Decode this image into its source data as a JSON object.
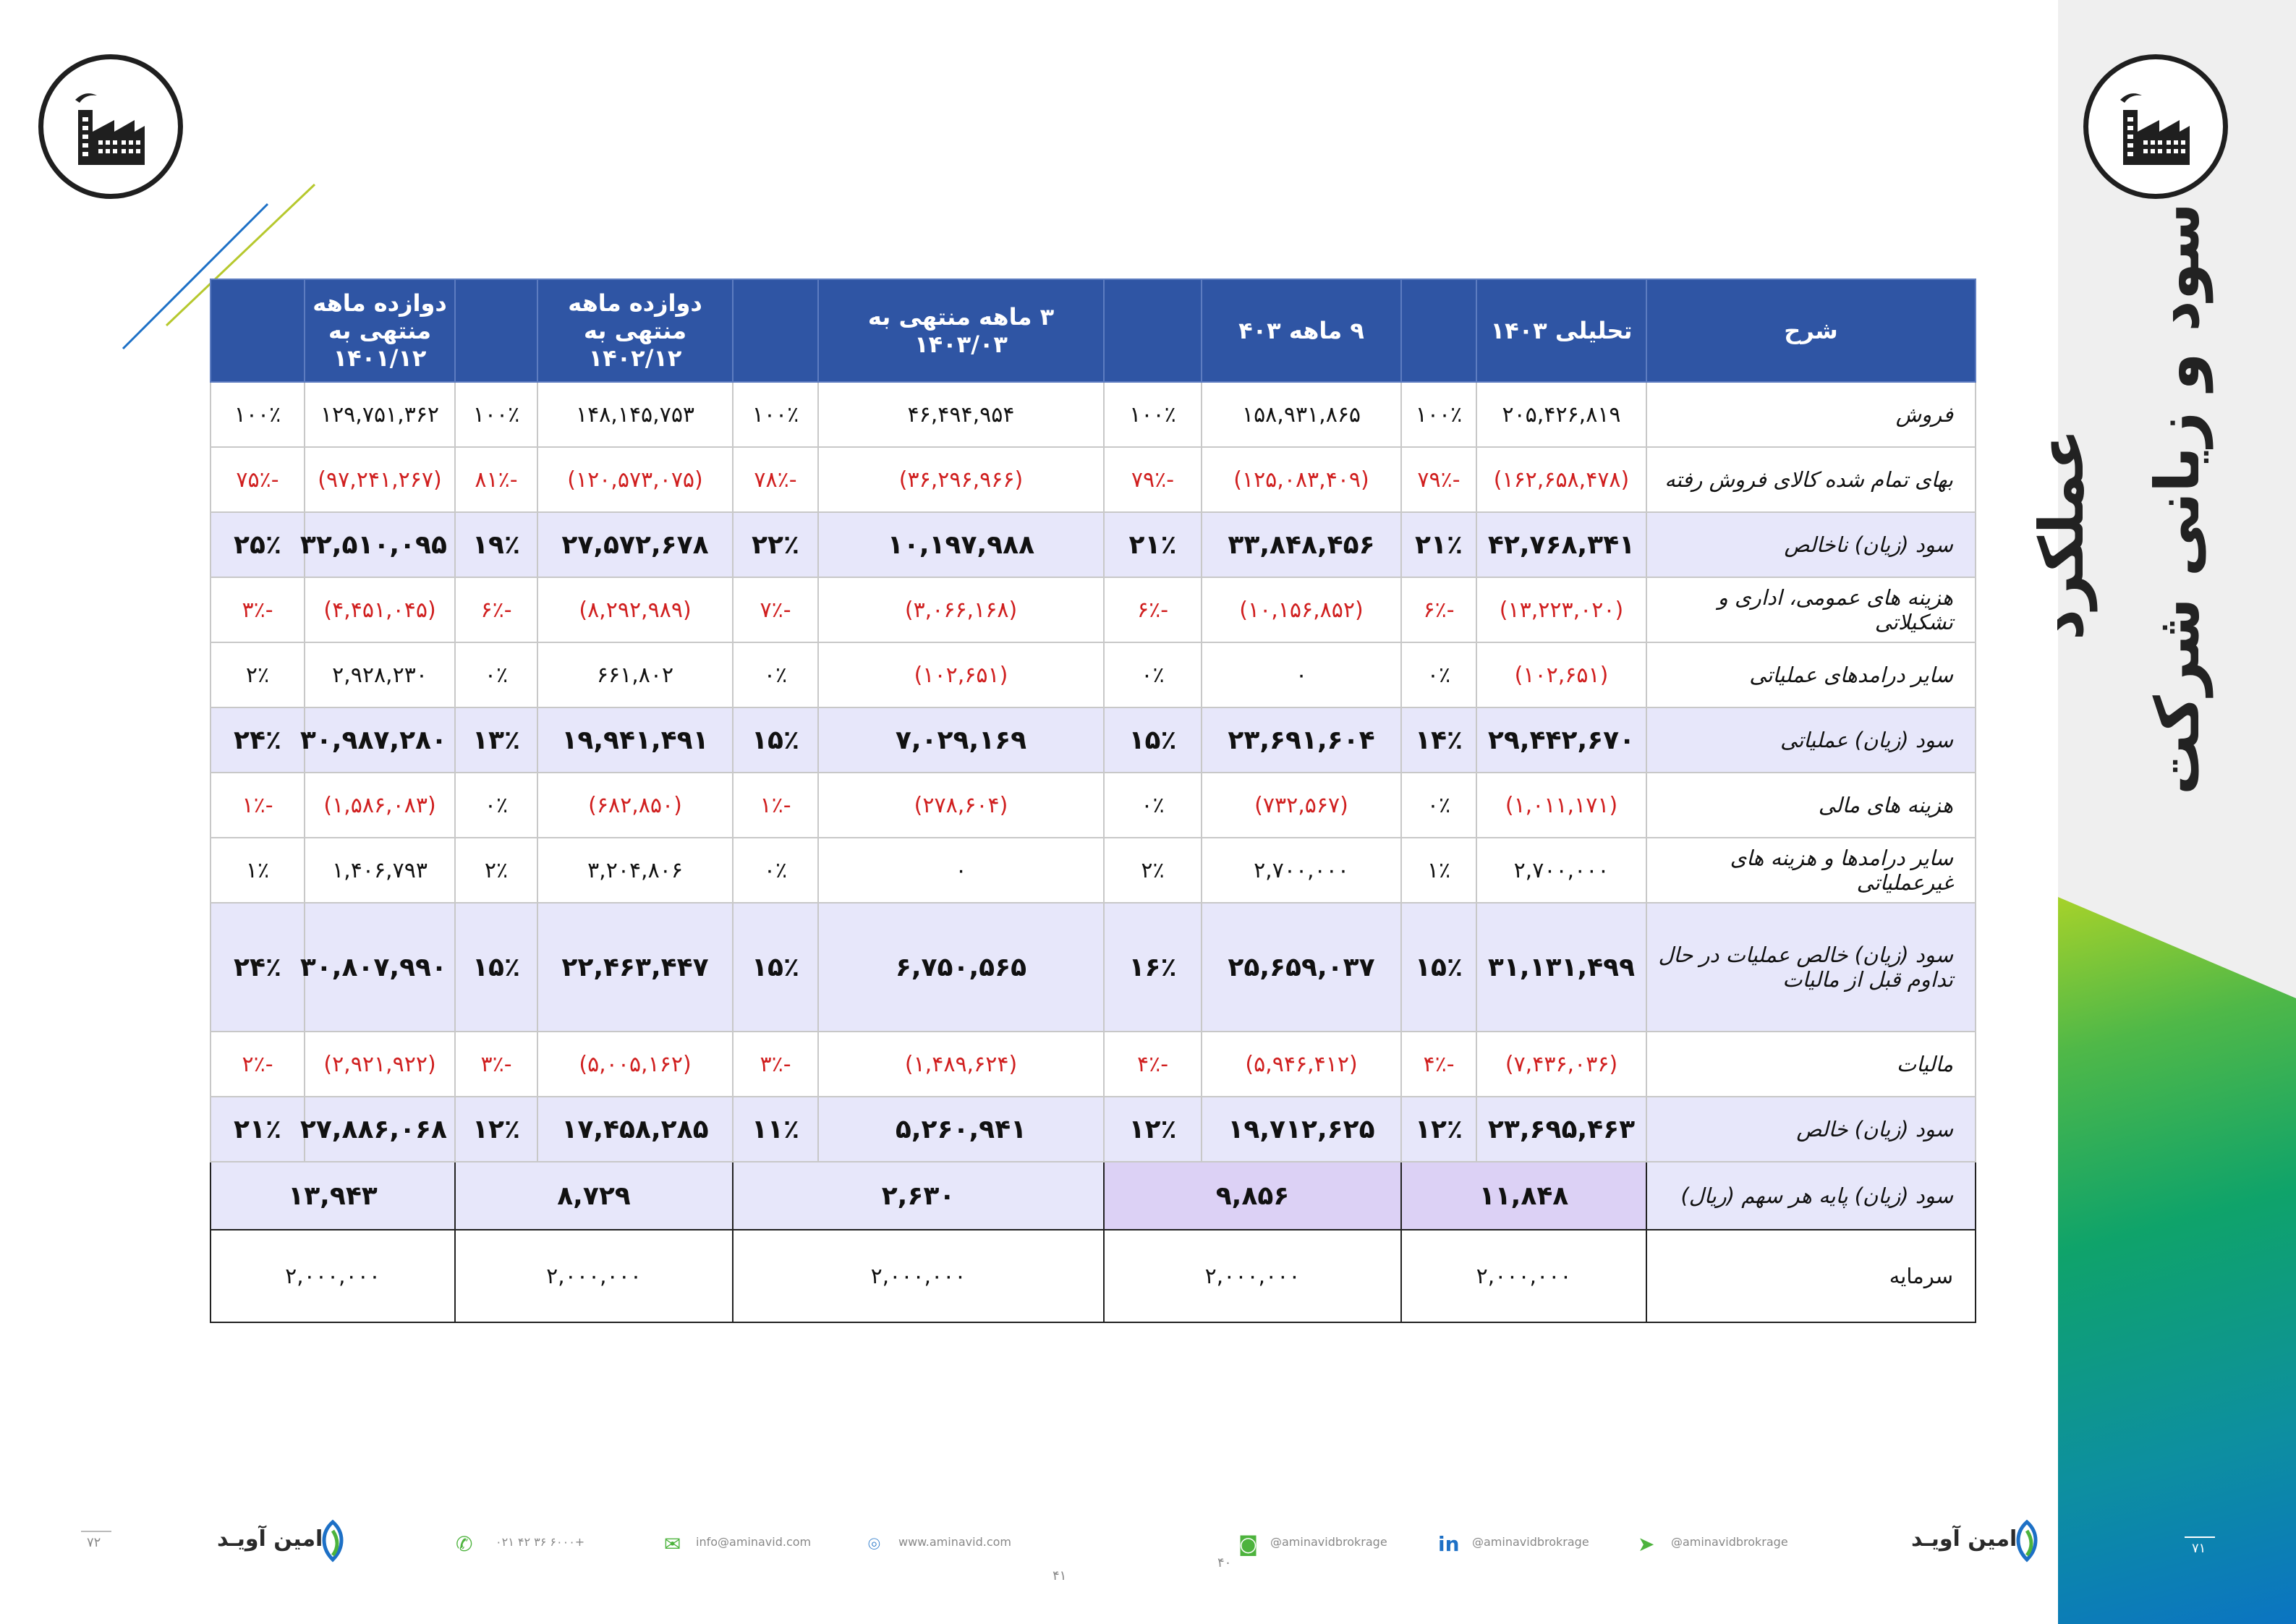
{
  "sidebar": {
    "title_line1": "سود و زیانی شرکت",
    "title_line2": "عملکرد"
  },
  "table": {
    "headers": {
      "desc": "شرح",
      "c1": "تحلیلی ۱۴۰۳",
      "c2": "۹ ماهه ۴۰۳",
      "c3": "۳ ماهه منتهی به ۱۴۰۳/۰۳",
      "c4_line1": "دوازده ماهه منتهی به",
      "c4_line2": "۱۴۰۲/۱۲",
      "c5_line1": "دوازده ماهه",
      "c5_line2": "منتهی به",
      "c5_line3": "۱۴۰۱/۱۲"
    },
    "rows": [
      {
        "desc": "فروش",
        "v1": "۲۰۵,۴۲۶,۸۱۹",
        "p1": "۱۰۰٪",
        "v2": "۱۵۸,۹۳۱,۸۶۵",
        "p2": "۱۰۰٪",
        "v3": "۴۶,۴۹۴,۹۵۴",
        "p3": "۱۰۰٪",
        "v4": "۱۴۸,۱۴۵,۷۵۳",
        "p4": "۱۰۰٪",
        "v5": "۱۲۹,۷۵۱,۳۶۲",
        "p5": "۱۰۰٪"
      },
      {
        "desc": "بهای تمام شده کالای فروش رفته",
        "v1": "(۱۶۲,۶۵۸,۴۷۸)",
        "p1": "-۷۹٪",
        "v2": "(۱۲۵,۰۸۳,۴۰۹)",
        "p2": "-۷۹٪",
        "v3": "(۳۶,۲۹۶,۹۶۶)",
        "p3": "-۷۸٪",
        "v4": "(۱۲۰,۵۷۳,۰۷۵)",
        "p4": "-۸۱٪",
        "v5": "(۹۷,۲۴۱,۲۶۷)",
        "p5": "-۷۵٪"
      },
      {
        "desc": "سود (زیان) ناخالص",
        "v1": "۴۲,۷۶۸,۳۴۱",
        "p1": "۲۱٪",
        "v2": "۳۳,۸۴۸,۴۵۶",
        "p2": "۲۱٪",
        "v3": "۱۰,۱۹۷,۹۸۸",
        "p3": "۲۲٪",
        "v4": "۲۷,۵۷۲,۶۷۸",
        "p4": "۱۹٪",
        "v5": "۳۲,۵۱۰,۰۹۵",
        "p5": "۲۵٪"
      },
      {
        "desc": "هزینه های عمومی، اداری و تشکیلاتی",
        "v1": "(۱۳,۲۲۳,۰۲۰)",
        "p1": "-۶٪",
        "v2": "(۱۰,۱۵۶,۸۵۲)",
        "p2": "-۶٪",
        "v3": "(۳,۰۶۶,۱۶۸)",
        "p3": "-۷٪",
        "v4": "(۸,۲۹۲,۹۸۹)",
        "p4": "-۶٪",
        "v5": "(۴,۴۵۱,۰۴۵)",
        "p5": "-۳٪"
      },
      {
        "desc": "سایر درامدهای عملیاتی",
        "v1": "(۱۰۲,۶۵۱)",
        "p1": "۰٪",
        "v2": "۰",
        "p2": "۰٪",
        "v3": "(۱۰۲,۶۵۱)",
        "p3": "۰٪",
        "v4": "۶۶۱,۸۰۲",
        "p4": "۰٪",
        "v5": "۲,۹۲۸,۲۳۰",
        "p5": "۲٪"
      },
      {
        "desc": "سود (زیان) عملیاتی",
        "v1": "۲۹,۴۴۲,۶۷۰",
        "p1": "۱۴٪",
        "v2": "۲۳,۶۹۱,۶۰۴",
        "p2": "۱۵٪",
        "v3": "۷,۰۲۹,۱۶۹",
        "p3": "۱۵٪",
        "v4": "۱۹,۹۴۱,۴۹۱",
        "p4": "۱۳٪",
        "v5": "۳۰,۹۸۷,۲۸۰",
        "p5": "۲۴٪"
      },
      {
        "desc": "هزینه های مالی",
        "v1": "(۱,۰۱۱,۱۷۱)",
        "p1": "۰٪",
        "v2": "(۷۳۲,۵۶۷)",
        "p2": "۰٪",
        "v3": "(۲۷۸,۶۰۴)",
        "p3": "-۱٪",
        "v4": "(۶۸۲,۸۵۰)",
        "p4": "۰٪",
        "v5": "(۱,۵۸۶,۰۸۳)",
        "p5": "-۱٪"
      },
      {
        "desc": "سایر درامدها و هزینه های غیرعملیاتی",
        "v1": "۲,۷۰۰,۰۰۰",
        "p1": "۱٪",
        "v2": "۲,۷۰۰,۰۰۰",
        "p2": "۲٪",
        "v3": "۰",
        "p3": "۰٪",
        "v4": "۳,۲۰۴,۸۰۶",
        "p4": "۲٪",
        "v5": "۱,۴۰۶,۷۹۳",
        "p5": "۱٪"
      },
      {
        "desc": "سود (زیان) خالص عملیات در حال تداوم قبل از مالیات",
        "v1": "۳۱,۱۳۱,۴۹۹",
        "p1": "۱۵٪",
        "v2": "۲۵,۶۵۹,۰۳۷",
        "p2": "۱۶٪",
        "v3": "۶,۷۵۰,۵۶۵",
        "p3": "۱۵٪",
        "v4": "۲۲,۴۶۳,۴۴۷",
        "p4": "۱۵٪",
        "v5": "۳۰,۸۰۷,۹۹۰",
        "p5": "۲۴٪"
      },
      {
        "desc": "مالیات",
        "v1": "(۷,۴۳۶,۰۳۶)",
        "p1": "-۴٪",
        "v2": "(۵,۹۴۶,۴۱۲)",
        "p2": "-۴٪",
        "v3": "(۱,۴۸۹,۶۲۴)",
        "p3": "-۳٪",
        "v4": "(۵,۰۰۵,۱۶۲)",
        "p4": "-۳٪",
        "v5": "(۲,۹۲۱,۹۲۲)",
        "p5": "-۲٪"
      },
      {
        "desc": "سود (زیان) خالص",
        "v1": "۲۳,۶۹۵,۴۶۳",
        "p1": "۱۲٪",
        "v2": "۱۹,۷۱۲,۶۲۵",
        "p2": "۱۲٪",
        "v3": "۵,۲۶۰,۹۴۱",
        "p3": "۱۱٪",
        "v4": "۱۷,۴۵۸,۲۸۵",
        "p4": "۱۲٪",
        "v5": "۲۷,۸۸۶,۰۶۸",
        "p5": "۲۱٪"
      }
    ],
    "eps": {
      "desc": "سود (زیان) پایه هر سهم (ریال)",
      "v1": "۱۱,۸۴۸",
      "v2": "۹,۸۵۶",
      "v3": "۲,۶۳۰",
      "v4": "۸,۷۲۹",
      "v5": "۱۳,۹۴۳"
    },
    "capital": {
      "desc": "سرمایه",
      "v1": "۲,۰۰۰,۰۰۰",
      "v2": "۲,۰۰۰,۰۰۰",
      "v3": "۲,۰۰۰,۰۰۰",
      "v4": "۲,۰۰۰,۰۰۰",
      "v5": "۲,۰۰۰,۰۰۰"
    }
  },
  "footer": {
    "brand_left": "امین آویـد",
    "brand_right": "امین آویـد",
    "phone": "۰۲۱ ۴۲ ۳۶ ۶۰۰۰+",
    "email": "info@aminavid.com",
    "website": "www.aminavid.com",
    "instagram": "@aminavidbrokrage",
    "linkedin": "@aminavidbrokrage",
    "telegram": "@aminavidbrokrage",
    "page_left": "۷۲",
    "page_right": "۷۱",
    "page_mid1": "۴۱",
    "page_mid2": "۴۰"
  },
  "colors": {
    "header_blue": "#2f55a4",
    "highlight_row": "#e7e7fa",
    "eps_purple": "#dcd1f5",
    "negative_red": "#d01f1f",
    "accent_green": "#4db33d"
  }
}
